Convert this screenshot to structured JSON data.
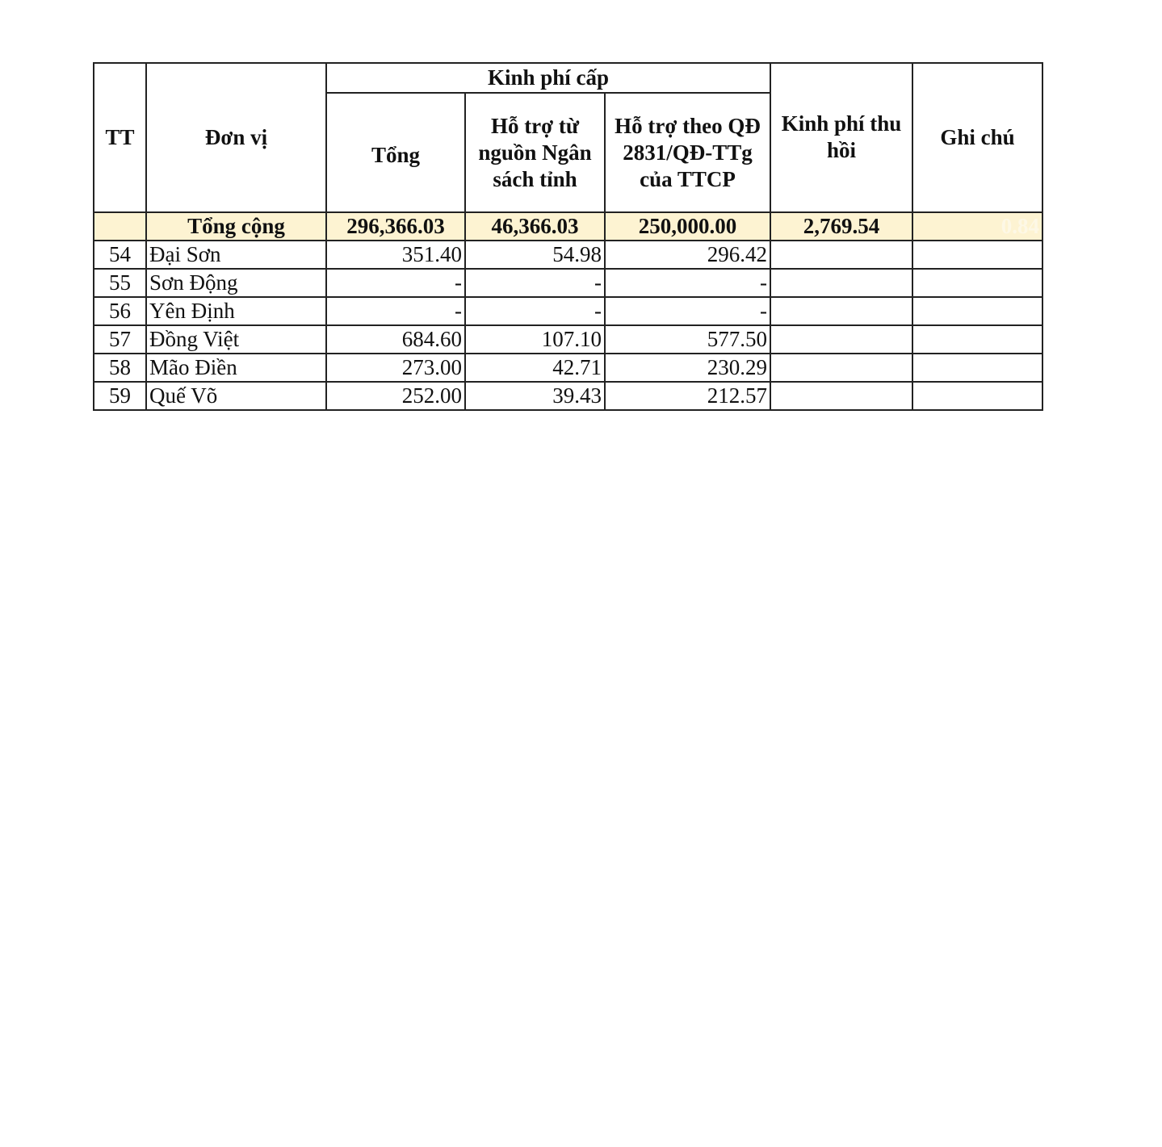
{
  "header": {
    "tt": "TT",
    "don_vi": "Đơn vị",
    "kinh_phi_cap": "Kinh phí cấp",
    "tong": "Tổng",
    "ho_tro_tinh": "Hỗ trợ từ nguồn Ngân sách tỉnh",
    "ho_tro_qd": "Hỗ trợ theo QĐ 2831/QĐ-TTg của TTCP",
    "thu_hoi": "Kinh phí thu hồi",
    "ghi_chu": "Ghi chú"
  },
  "total": {
    "label": "Tổng cộng",
    "tong": "296,366.03",
    "tinh": "46,366.03",
    "qd": "250,000.00",
    "thu_hoi": "2,769.54",
    "ghi_chu": "0.84"
  },
  "rows": [
    {
      "tt": "54",
      "name": "Đại Sơn",
      "tong": "351.40",
      "tinh": "54.98",
      "qd": "296.42"
    },
    {
      "tt": "55",
      "name": "Sơn Động",
      "tong": "-",
      "tinh": "-",
      "qd": "-"
    },
    {
      "tt": "56",
      "name": "Yên Định",
      "tong": "-",
      "tinh": "-",
      "qd": "-"
    },
    {
      "tt": "57",
      "name": "Đồng Việt",
      "tong": "684.60",
      "tinh": "107.10",
      "qd": "577.50"
    },
    {
      "tt": "58",
      "name": "Mão Điền",
      "tong": "273.00",
      "tinh": "42.71",
      "qd": "230.29"
    },
    {
      "tt": "59",
      "name": "Quế Võ",
      "tong": "252.00",
      "tinh": "39.43",
      "qd": "212.57"
    }
  ]
}
